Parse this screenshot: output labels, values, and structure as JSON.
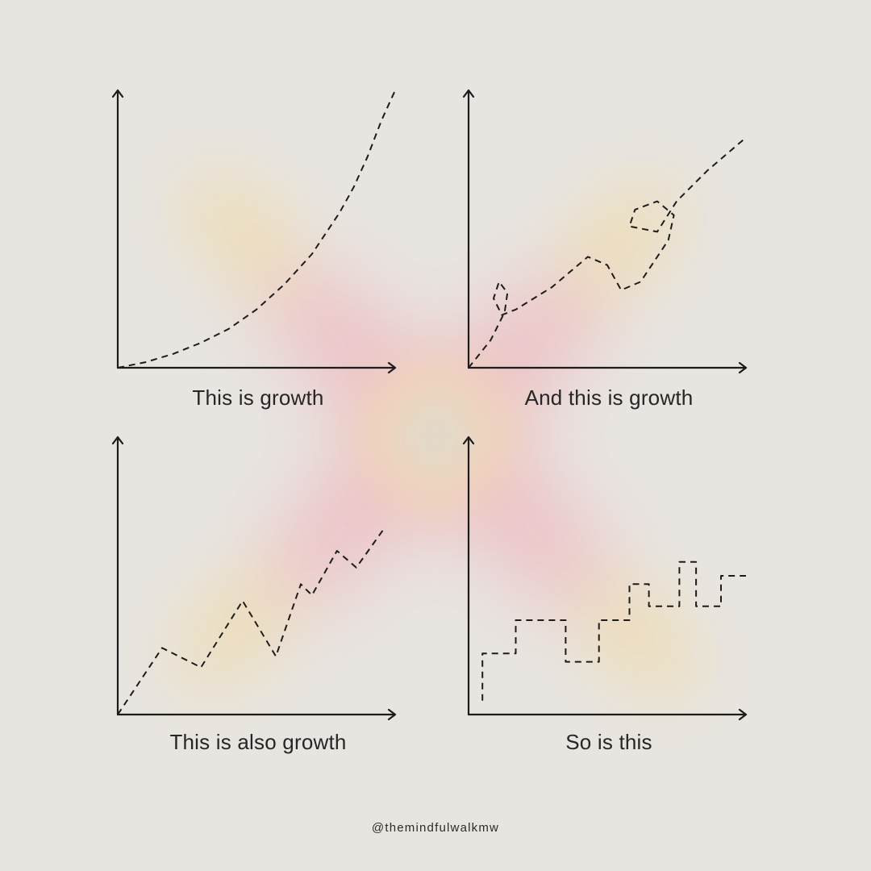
{
  "page": {
    "handle": "@themindfulwalkmw",
    "colors": {
      "background": "#e8e5e1",
      "ink": "#1c1c1c",
      "glow_pink": "#f2a9b4",
      "glow_yellow": "#f4d58a",
      "glow_mint": "#cfe9d6"
    }
  },
  "chart_data": [
    {
      "type": "line",
      "caption": "This is growth",
      "style": "dashed",
      "shape": "exponential curve",
      "xlim": [
        0,
        100
      ],
      "ylim": [
        0,
        100
      ],
      "x": [
        0,
        10,
        20,
        30,
        40,
        50,
        60,
        70,
        80,
        85,
        90,
        95,
        100
      ],
      "y": [
        0,
        2,
        5,
        9,
        14,
        21,
        30,
        41,
        56,
        65,
        76,
        89,
        100
      ]
    },
    {
      "type": "line",
      "caption": "And this is growth",
      "style": "dashed",
      "shape": "winding curve with loops",
      "xlim": [
        0,
        100
      ],
      "ylim": [
        0,
        100
      ],
      "x": [
        0,
        8,
        13,
        14,
        11,
        9,
        12,
        17,
        30,
        43,
        50,
        55,
        62,
        72,
        74,
        68,
        60,
        58,
        68,
        75,
        86,
        100
      ],
      "y": [
        0,
        10,
        20,
        27,
        31,
        25,
        19,
        21,
        29,
        40,
        37,
        28,
        31,
        46,
        55,
        60,
        57,
        51,
        49,
        60,
        71,
        83
      ]
    },
    {
      "type": "line",
      "caption": "This is also growth",
      "style": "dashed",
      "shape": "zigzag",
      "xlim": [
        0,
        100
      ],
      "ylim": [
        0,
        100
      ],
      "x": [
        0,
        16,
        30,
        45,
        57,
        66,
        70,
        79,
        86,
        96
      ],
      "y": [
        0,
        24,
        17,
        41,
        21,
        47,
        43,
        59,
        53,
        67
      ]
    },
    {
      "type": "line",
      "caption": "So is this",
      "style": "dashed",
      "shape": "staircase",
      "xlim": [
        0,
        100
      ],
      "ylim": [
        0,
        100
      ],
      "x": [
        5,
        5,
        17,
        17,
        35,
        35,
        47,
        47,
        58,
        58,
        65,
        65,
        76,
        76,
        82,
        82,
        91,
        91,
        100
      ],
      "y": [
        5,
        22,
        22,
        34,
        34,
        19,
        19,
        34,
        34,
        47,
        47,
        39,
        39,
        55,
        55,
        39,
        39,
        50,
        50
      ]
    }
  ]
}
